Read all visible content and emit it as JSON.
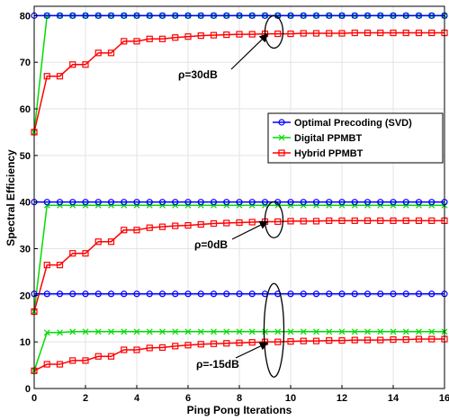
{
  "chart_data": {
    "type": "line",
    "xlabel": "Ping Pong Iterations",
    "ylabel": "Spectral Efficiency",
    "xlim": [
      0,
      16
    ],
    "ylim": [
      0,
      82
    ],
    "xticks": [
      0,
      2,
      4,
      6,
      8,
      10,
      12,
      14,
      16
    ],
    "yticks": [
      0,
      10,
      20,
      30,
      40,
      50,
      60,
      70,
      80
    ],
    "grid": true,
    "legend_placement": "center-right",
    "legend": [
      {
        "name": "Optimal Precoding (SVD)",
        "color": "#0000ff",
        "marker": "circle"
      },
      {
        "name": "Digital PPMBT",
        "color": "#00dd00",
        "marker": "x"
      },
      {
        "name": "Hybrid PPMBT",
        "color": "#ff0000",
        "marker": "square"
      }
    ],
    "x": [
      0,
      0.5,
      1,
      1.5,
      2,
      2.5,
      3,
      3.5,
      4,
      4.5,
      5,
      5.5,
      6,
      6.5,
      7,
      7.5,
      8,
      8.5,
      9,
      9.5,
      10,
      10.5,
      11,
      11.5,
      12,
      12.5,
      13,
      13.5,
      14,
      14.5,
      15,
      15.5,
      16
    ],
    "groups": [
      {
        "label": "ρ=30dB",
        "svd": 80,
        "digital": [
          55,
          80,
          80,
          80,
          80,
          80,
          80,
          80,
          80,
          80,
          80,
          80,
          80,
          80,
          80,
          80,
          80,
          80,
          80,
          80,
          80,
          80,
          80,
          80,
          80,
          80,
          80,
          80,
          80,
          80,
          80,
          80,
          80
        ],
        "hybrid": [
          55,
          67,
          67,
          69.5,
          69.5,
          72,
          72,
          74.5,
          74.5,
          75,
          75,
          75.3,
          75.5,
          75.7,
          75.8,
          75.9,
          76,
          76,
          76.1,
          76.1,
          76.1,
          76.2,
          76.2,
          76.2,
          76.2,
          76.3,
          76.3,
          76.3,
          76.3,
          76.3,
          76.3,
          76.3,
          76.3
        ]
      },
      {
        "label": "ρ=0dB",
        "svd": 40,
        "digital": [
          16.5,
          39.3,
          39.3,
          39.3,
          39.3,
          39.3,
          39.3,
          39.3,
          39.3,
          39.3,
          39.3,
          39.3,
          39.3,
          39.3,
          39.3,
          39.3,
          39.3,
          39.3,
          39.3,
          39.3,
          39.3,
          39.3,
          39.3,
          39.3,
          39.3,
          39.3,
          39.3,
          39.3,
          39.3,
          39.3,
          39.3,
          39.3,
          39.3
        ],
        "hybrid": [
          16.5,
          26.5,
          26.5,
          29,
          29,
          31.5,
          31.5,
          34,
          34,
          34.5,
          34.7,
          34.9,
          35,
          35.2,
          35.4,
          35.5,
          35.6,
          35.7,
          35.8,
          35.8,
          35.9,
          35.9,
          35.9,
          36,
          36,
          36,
          36,
          36,
          36,
          36,
          36,
          36,
          36
        ]
      },
      {
        "label": "ρ=-15dB",
        "svd": 20.3,
        "digital": [
          3.8,
          12,
          12,
          12.2,
          12.2,
          12.2,
          12.2,
          12.2,
          12.2,
          12.2,
          12.2,
          12.2,
          12.2,
          12.2,
          12.2,
          12.2,
          12.2,
          12.2,
          12.2,
          12.2,
          12.2,
          12.2,
          12.2,
          12.2,
          12.2,
          12.2,
          12.2,
          12.2,
          12.2,
          12.2,
          12.2,
          12.2,
          12.2
        ],
        "hybrid": [
          3.8,
          5.2,
          5.2,
          6,
          6,
          6.9,
          6.9,
          8.3,
          8.3,
          8.7,
          8.8,
          9.1,
          9.3,
          9.5,
          9.6,
          9.7,
          9.8,
          9.9,
          10,
          10,
          10.1,
          10.2,
          10.2,
          10.3,
          10.3,
          10.4,
          10.4,
          10.4,
          10.5,
          10.5,
          10.6,
          10.6,
          10.6
        ]
      }
    ],
    "annotations": [
      {
        "text": "ρ=30dB",
        "ellipse_center": [
          9.35,
          76.5
        ],
        "arrow_to": [
          9.2,
          76
        ]
      },
      {
        "text": "ρ=0dB",
        "ellipse_center": [
          9.35,
          36.2
        ],
        "arrow_to": [
          9.2,
          35.8
        ]
      },
      {
        "text": "ρ=-15dB",
        "ellipse_center": [
          9.35,
          12.5
        ],
        "arrow_to": [
          9.2,
          9.8
        ]
      }
    ]
  }
}
